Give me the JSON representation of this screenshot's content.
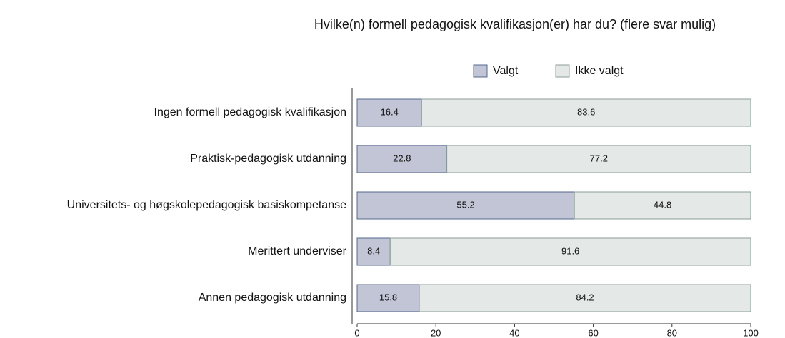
{
  "chart_data": {
    "type": "stacked_bar_horizontal",
    "title": "Hvilke(n) formell pedagogisk kvalifikasjon(er) har du? (flere svar mulig)",
    "categories": [
      "Ingen formell pedagogisk kvalifikasjon",
      "Praktisk-pedagogisk utdanning",
      "Universitets- og høgskolepedagogisk basiskompetanse",
      "Merittert underviser",
      "Annen pedagogisk utdanning"
    ],
    "series": [
      {
        "name": "Valgt",
        "color": "#c1c5d6",
        "values": [
          16.4,
          22.8,
          55.2,
          8.4,
          15.8
        ]
      },
      {
        "name": "Ikke valgt",
        "color": "#e4e9e7",
        "values": [
          83.6,
          77.2,
          44.8,
          91.6,
          84.2
        ]
      }
    ],
    "xlim": [
      0,
      100
    ],
    "xticks": [
      0,
      20,
      40,
      60,
      80,
      100
    ],
    "legend": "top"
  }
}
